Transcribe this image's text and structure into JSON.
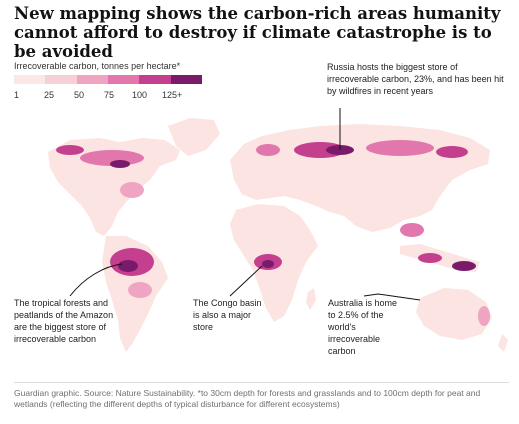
{
  "title": "New mapping shows the carbon-rich areas humanity cannot afford to destroy if climate catastrophe is to be avoided",
  "legend": {
    "title": "Irrecoverable carbon, tonnes per hectare*",
    "colors": [
      "#fbe7e3",
      "#f7cfd6",
      "#efa5c2",
      "#e277ad",
      "#c4408f",
      "#7a1a6b"
    ],
    "ticks": [
      "1",
      "25",
      "50",
      "75",
      "100",
      "125+"
    ]
  },
  "colors": {
    "land_base": "#fbe4e1",
    "low": "#f7cfd6",
    "medium": "#efa5c2",
    "high": "#e277ad",
    "very_high": "#c4408f",
    "max": "#7a1a6b",
    "annotation_line": "#121212"
  },
  "annotations": {
    "russia": "Russia hosts the biggest store of irrecoverable carbon, 23%, and has been hit by wildfires in recent years",
    "amazon": "The tropical forests and peatlands of the Amazon are the biggest store of irrecoverable carbon",
    "congo": "The Congo basin is also a major store",
    "australia": "Australia is home to 2.5% of the world's irrecoverable carbon"
  },
  "footer": "Guardian graphic. Source: Nature Sustainability. *to 30cm depth for forests and grasslands and to 100cm depth for peat and wetlands (reflecting the different depths of typical disturbance for different ecosystems)"
}
